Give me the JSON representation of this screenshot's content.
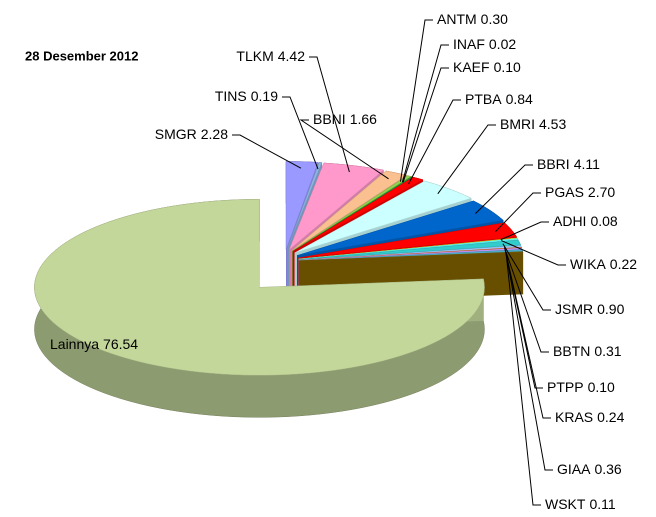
{
  "chart_data": {
    "type": "pie",
    "title": "28 Desember 2012",
    "categories": [
      "SMGR",
      "TINS",
      "TLKM",
      "BBNI",
      "ANTM",
      "INAF",
      "KAEF",
      "PTBA",
      "BMRI",
      "BBRI",
      "PGAS",
      "ADHI",
      "WIKA",
      "JSMR",
      "BBTN",
      "PTPP",
      "KRAS",
      "GIAA",
      "WSKT",
      "Lainnya"
    ],
    "values": [
      2.28,
      0.19,
      4.42,
      1.66,
      0.3,
      0.02,
      0.1,
      0.84,
      4.53,
      4.11,
      2.7,
      0.08,
      0.22,
      0.9,
      0.31,
      0.1,
      0.24,
      0.36,
      0.11,
      76.54
    ],
    "value_labels": [
      "2.28",
      "0.19",
      "4.42",
      "1.66",
      "0.30",
      "0.02",
      "0.10",
      "0.84",
      "4.53",
      "4.11",
      "2.70",
      "0.08",
      "0.22",
      "0.90",
      "0.31",
      "0.10",
      "0.24",
      "0.36",
      "0.11",
      "76.54"
    ],
    "colors": [
      "#9999ff",
      "#8db4e2",
      "#ff99cc",
      "#fac090",
      "#92d050",
      "#ffc000",
      "#00b050",
      "#ff0000",
      "#ccffff",
      "#0066cc",
      "#ff0000",
      "#ffff00",
      "#66ffff",
      "#33cccc",
      "#99ccff",
      "#ff6600",
      "#cc99ff",
      "#4bacc6",
      "#7f6000",
      "#c4d79b"
    ]
  }
}
